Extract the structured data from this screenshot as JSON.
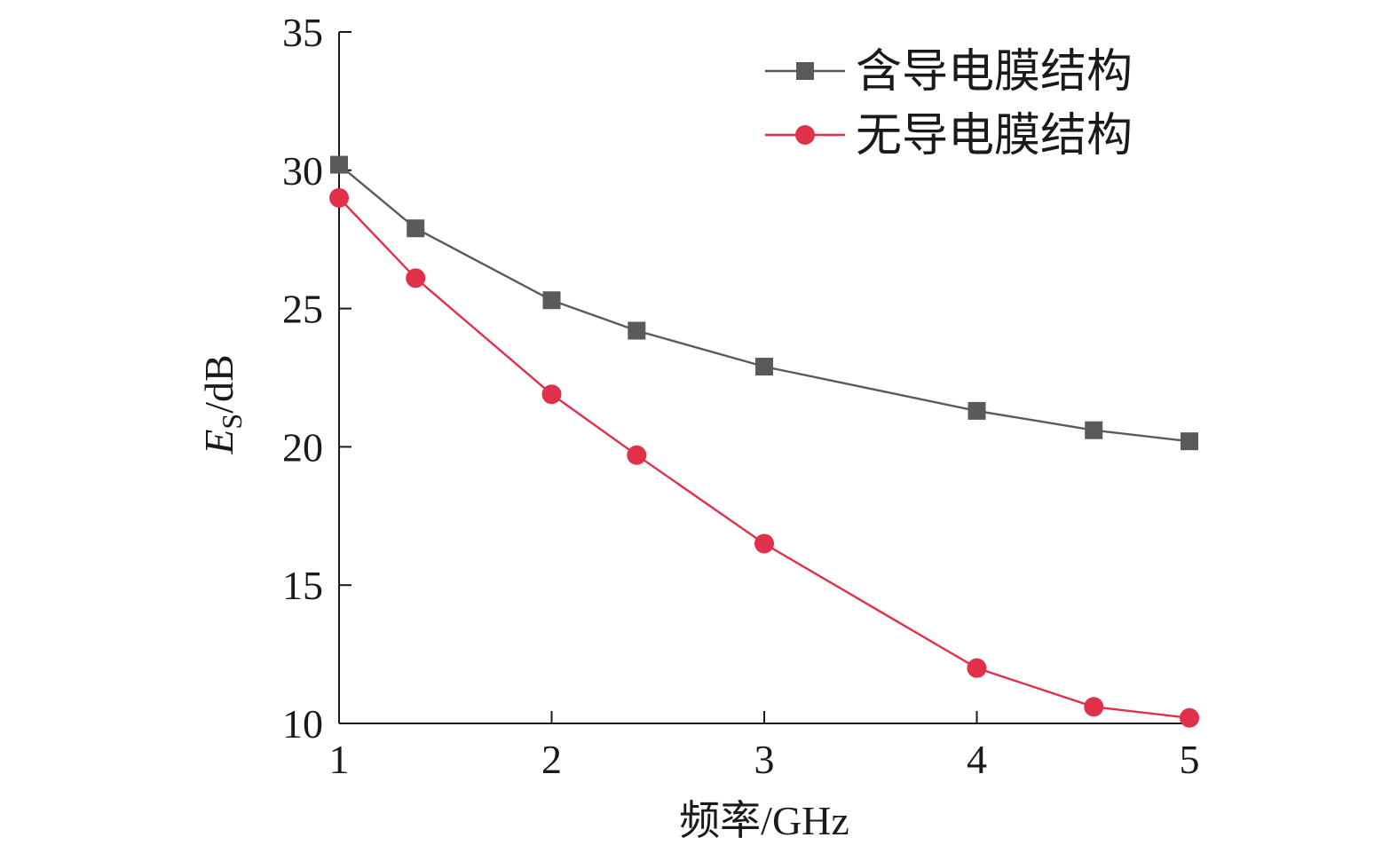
{
  "chart_data": {
    "type": "line",
    "title": "",
    "xlabel": "频率/GHz",
    "ylabel_main": "E",
    "ylabel_sub": "S",
    "ylabel_rest": "/dB",
    "xlim": [
      1,
      5
    ],
    "ylim": [
      10,
      35
    ],
    "x_ticks": [
      "1",
      "2",
      "3",
      "4",
      "5"
    ],
    "y_ticks": [
      "10",
      "15",
      "20",
      "25",
      "30",
      "35"
    ],
    "grid": false,
    "legend_position": "top-right",
    "series": [
      {
        "name": "含导电膜结构",
        "color": "#5a5a5a",
        "marker": "square",
        "x": [
          1,
          1.36,
          2,
          2.4,
          3,
          4,
          4.55,
          5
        ],
        "y": [
          30.2,
          27.9,
          25.3,
          24.2,
          22.9,
          21.3,
          20.6,
          20.2
        ]
      },
      {
        "name": "无导电膜结构",
        "color": "#e0304a",
        "marker": "circle",
        "x": [
          1,
          1.36,
          2,
          2.4,
          3,
          4,
          4.55,
          5
        ],
        "y": [
          29.0,
          26.1,
          21.9,
          19.7,
          16.5,
          12.0,
          10.6,
          10.2
        ]
      }
    ]
  }
}
